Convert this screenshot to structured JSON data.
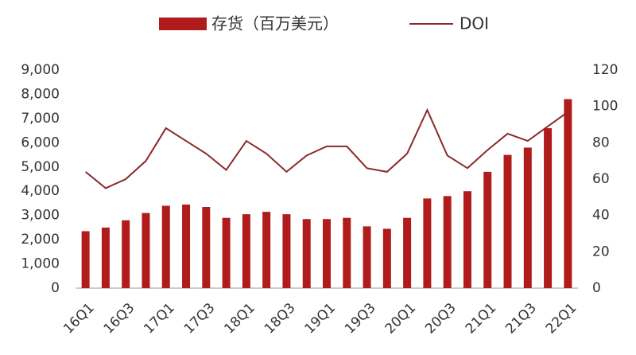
{
  "chart_data": {
    "type": "bar",
    "categories": [
      "16Q1",
      null,
      "16Q3",
      null,
      "17Q1",
      null,
      "17Q3",
      null,
      "18Q1",
      null,
      "18Q3",
      null,
      "19Q1",
      null,
      "19Q3",
      null,
      "20Q1",
      null,
      "20Q3",
      null,
      "21Q1",
      null,
      "21Q3",
      null,
      "22Q1"
    ],
    "series": [
      {
        "name": "存货（百万美元）",
        "type": "bar",
        "color": "#b01c1c",
        "values": [
          2350,
          2500,
          2800,
          3100,
          3400,
          3450,
          3350,
          2900,
          3050,
          3150,
          3050,
          2850,
          2850,
          2900,
          2550,
          2450,
          2900,
          3700,
          3800,
          4000,
          4800,
          5500,
          5800,
          6600,
          7800
        ]
      },
      {
        "name": "DOI",
        "type": "line",
        "axis": "y2",
        "color": "#8b2a2a",
        "values": [
          64,
          55,
          60,
          70,
          88,
          81,
          74,
          65,
          81,
          74,
          64,
          73,
          78,
          78,
          66,
          64,
          74,
          98,
          73,
          66,
          76,
          85,
          81,
          89,
          97
        ]
      }
    ],
    "ylim": [
      0,
      9000
    ],
    "yticks": [
      0,
      {
        "value": 1000,
        "label": "1,000"
      },
      {
        "value": 2000,
        "label": "2,000"
      },
      {
        "value": 3000,
        "label": "3,000"
      },
      {
        "value": 4000,
        "label": "4,000"
      },
      {
        "value": 5000,
        "label": "5,000"
      },
      {
        "value": 6000,
        "label": "6,000"
      },
      {
        "value": 7000,
        "label": "7,000"
      },
      {
        "value": 8000,
        "label": "8,000"
      },
      {
        "value": 9000,
        "label": "9,000"
      }
    ],
    "y2lim": [
      0,
      120
    ],
    "y2ticks": [
      0,
      20,
      40,
      60,
      80,
      100,
      120
    ],
    "grid": false
  }
}
